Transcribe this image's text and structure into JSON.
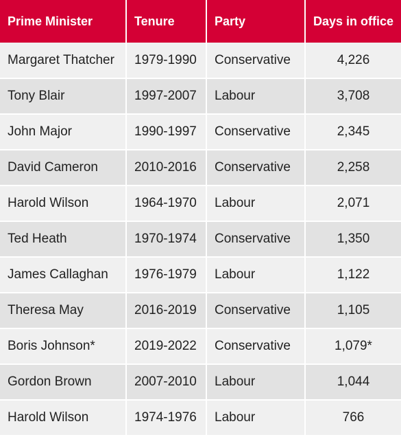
{
  "table": {
    "headers": [
      "Prime Minister",
      "Tenure",
      "Party",
      "Days in office"
    ],
    "rows": [
      [
        "Margaret Thatcher",
        "1979-1990",
        "Conservative",
        "4,226"
      ],
      [
        "Tony Blair",
        "1997-2007",
        "Labour",
        "3,708"
      ],
      [
        "John Major",
        "1990-1997",
        "Conservative",
        "2,345"
      ],
      [
        "David Cameron",
        "2010-2016",
        "Conservative",
        "2,258"
      ],
      [
        "Harold Wilson",
        "1964-1970",
        "Labour",
        "2,071"
      ],
      [
        "Ted Heath",
        "1970-1974",
        "Conservative",
        "1,350"
      ],
      [
        "James Callaghan",
        "1976-1979",
        "Labour",
        "1,122"
      ],
      [
        "Theresa May",
        "2016-2019",
        "Conservative",
        "1,105"
      ],
      [
        "Boris Johnson*",
        "2019-2022",
        "Conservative",
        "1,079*"
      ],
      [
        "Gordon Brown",
        "2007-2010",
        "Labour",
        "1,044"
      ],
      [
        "Harold Wilson",
        "1974-1976",
        "Labour",
        "766"
      ]
    ]
  },
  "colors": {
    "header_bg": "#d40035",
    "row_light": "#f0f0f0",
    "row_dark": "#e2e2e2"
  }
}
